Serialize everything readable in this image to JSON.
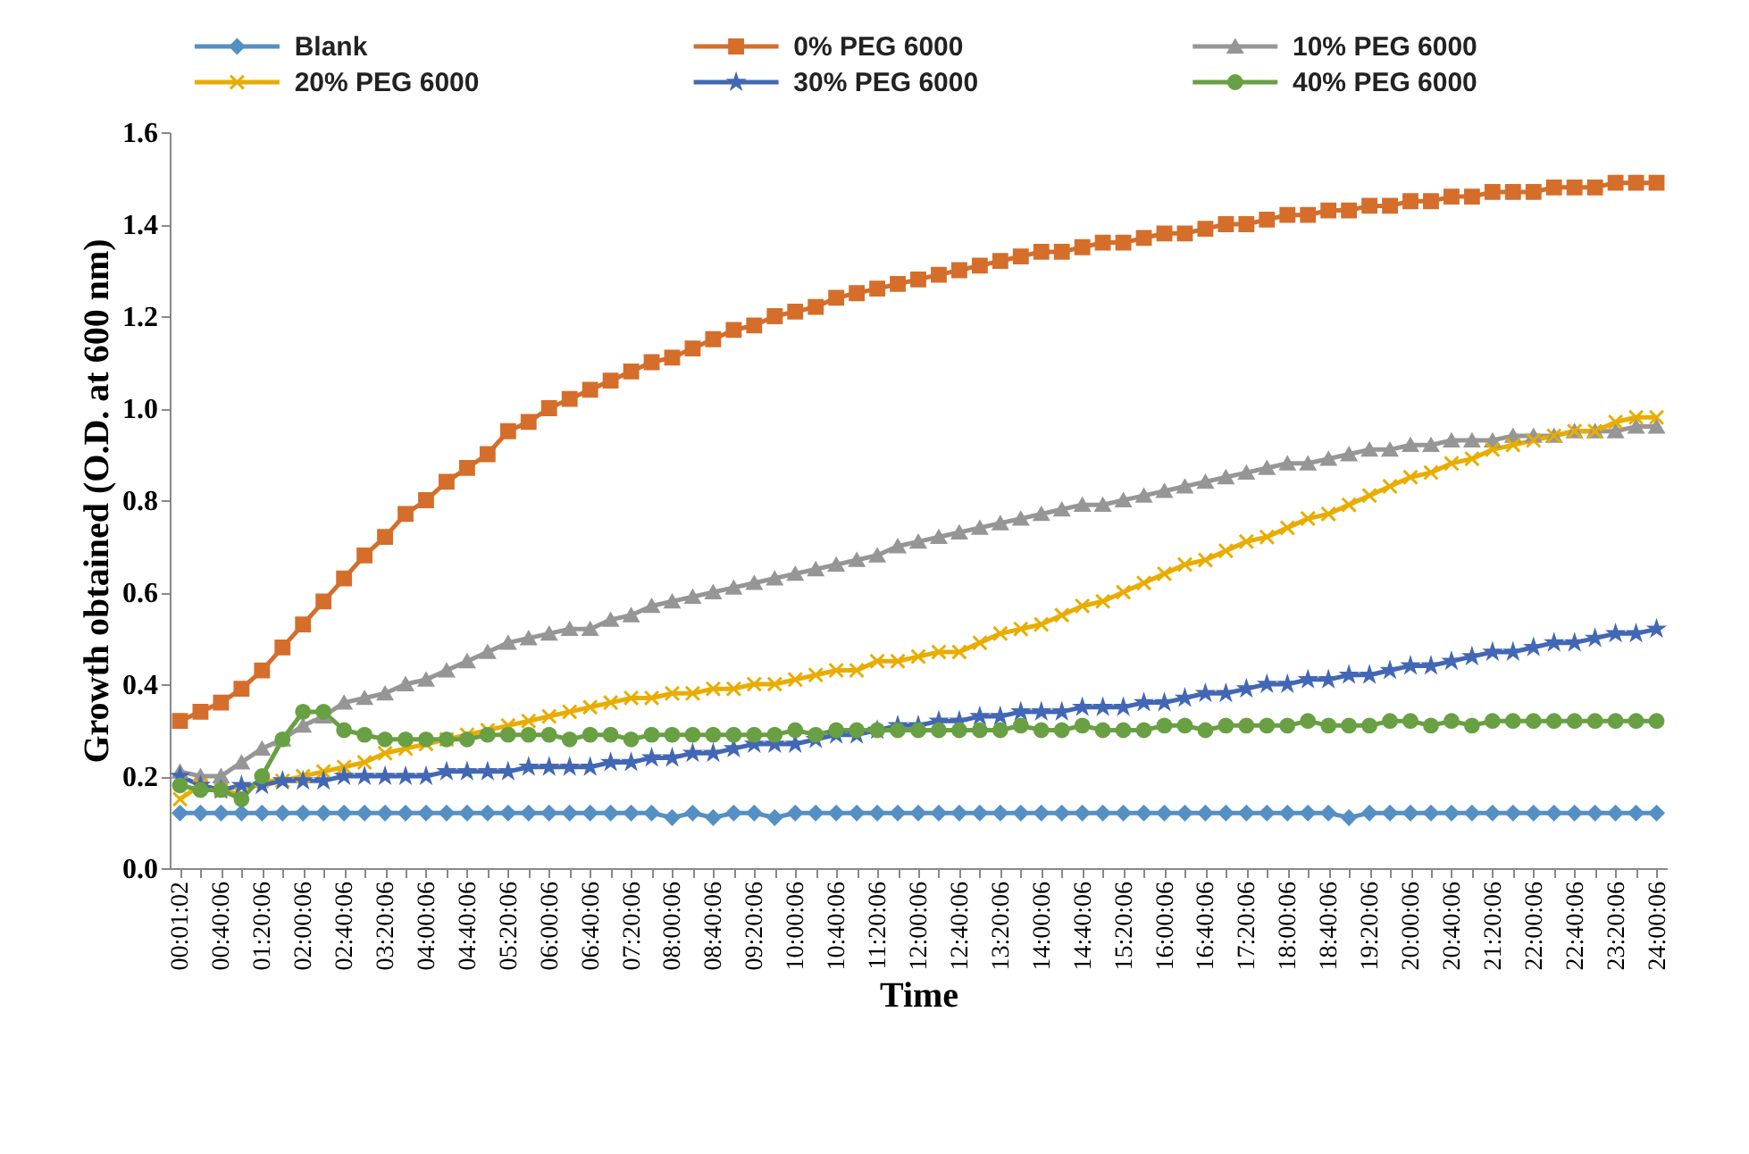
{
  "chart_data": {
    "type": "line",
    "xlabel": "Time",
    "ylabel": "Growth obtained (O.D.  at 600 nm)",
    "categories": [
      "00:01:02",
      null,
      "00:40:06",
      null,
      "01:20:06",
      null,
      "02:00:06",
      null,
      "02:40:06",
      null,
      "03:20:06",
      null,
      "04:00:06",
      null,
      "04:40:06",
      null,
      "05:20:06",
      null,
      "06:00:06",
      null,
      "06:40:06",
      null,
      "07:20:06",
      null,
      "08:00:06",
      null,
      "08:40:06",
      null,
      "09:20:06",
      null,
      "10:00:06",
      null,
      "10:40:06",
      null,
      "11:20:06",
      null,
      "12:00:06",
      null,
      "12:40:06",
      null,
      "13:20:06",
      null,
      "14:00:06",
      null,
      "14:40:06",
      null,
      "15:20:06",
      null,
      "16:00:06",
      null,
      "16:40:06",
      null,
      "17:20:06",
      null,
      "18:00:06",
      null,
      "18:40:06",
      null,
      "19:20:06",
      null,
      "20:00:06",
      null,
      "20:40:06",
      null,
      "21:20:06",
      null,
      "22:00:06",
      null,
      "22:40:06",
      null,
      "23:20:06",
      null,
      "24:00:06"
    ],
    "ylim": [
      0,
      1.6
    ],
    "yticks": [
      {
        "value": 0,
        "label": "0.0"
      },
      {
        "value": 0.2,
        "label": "0.2"
      },
      {
        "value": 0.4,
        "label": "0.4"
      },
      {
        "value": 0.6,
        "label": "0.6"
      },
      {
        "value": 0.8,
        "label": "0.8"
      },
      {
        "value": 1,
        "label": "1.0"
      },
      {
        "value": 1.2,
        "label": "1.2"
      },
      {
        "value": 1.4,
        "label": "1.4"
      },
      {
        "value": 1.6,
        "label": "1.6"
      }
    ],
    "grid": false,
    "legend": "top",
    "series": [
      {
        "name": "Blank",
        "color": "#5590c4",
        "marker": "diamond",
        "values": [
          0.12,
          0.12,
          0.12,
          0.12,
          0.12,
          0.12,
          0.12,
          0.12,
          0.12,
          0.12,
          0.12,
          0.12,
          0.12,
          0.12,
          0.12,
          0.12,
          0.12,
          0.12,
          0.12,
          0.12,
          0.12,
          0.12,
          0.12,
          0.12,
          0.11,
          0.12,
          0.11,
          0.12,
          0.12,
          0.11,
          0.12,
          0.12,
          0.12,
          0.12,
          0.12,
          0.12,
          0.12,
          0.12,
          0.12,
          0.12,
          0.12,
          0.12,
          0.12,
          0.12,
          0.12,
          0.12,
          0.12,
          0.12,
          0.12,
          0.12,
          0.12,
          0.12,
          0.12,
          0.12,
          0.12,
          0.12,
          0.12,
          0.11,
          0.12,
          0.12,
          0.12,
          0.12,
          0.12,
          0.12,
          0.12,
          0.12,
          0.12,
          0.12,
          0.12,
          0.12,
          0.12,
          0.12,
          0.12
        ]
      },
      {
        "name": "0% PEG 6000",
        "color": "#d56e2b",
        "marker": "square",
        "values": [
          0.32,
          0.34,
          0.36,
          0.39,
          0.43,
          0.48,
          0.53,
          0.58,
          0.63,
          0.68,
          0.72,
          0.77,
          0.8,
          0.84,
          0.87,
          0.9,
          0.95,
          0.97,
          1.0,
          1.02,
          1.04,
          1.06,
          1.08,
          1.1,
          1.11,
          1.13,
          1.15,
          1.17,
          1.18,
          1.2,
          1.21,
          1.22,
          1.24,
          1.25,
          1.26,
          1.27,
          1.28,
          1.29,
          1.3,
          1.31,
          1.32,
          1.33,
          1.34,
          1.34,
          1.35,
          1.36,
          1.36,
          1.37,
          1.38,
          1.38,
          1.39,
          1.4,
          1.4,
          1.41,
          1.42,
          1.42,
          1.43,
          1.43,
          1.44,
          1.44,
          1.45,
          1.45,
          1.46,
          1.46,
          1.47,
          1.47,
          1.47,
          1.48,
          1.48,
          1.48,
          1.49,
          1.49,
          1.49
        ]
      },
      {
        "name": "10% PEG 6000",
        "color": "#969696",
        "marker": "triangle",
        "values": [
          0.21,
          0.2,
          0.2,
          0.23,
          0.26,
          0.28,
          0.31,
          0.33,
          0.36,
          0.37,
          0.38,
          0.4,
          0.41,
          0.43,
          0.45,
          0.47,
          0.49,
          0.5,
          0.51,
          0.52,
          0.52,
          0.54,
          0.55,
          0.57,
          0.58,
          0.59,
          0.6,
          0.61,
          0.62,
          0.63,
          0.64,
          0.65,
          0.66,
          0.67,
          0.68,
          0.7,
          0.71,
          0.72,
          0.73,
          0.74,
          0.75,
          0.76,
          0.77,
          0.78,
          0.79,
          0.79,
          0.8,
          0.81,
          0.82,
          0.83,
          0.84,
          0.85,
          0.86,
          0.87,
          0.88,
          0.88,
          0.89,
          0.9,
          0.91,
          0.91,
          0.92,
          0.92,
          0.93,
          0.93,
          0.93,
          0.94,
          0.94,
          0.94,
          0.95,
          0.95,
          0.95,
          0.96,
          0.96
        ]
      },
      {
        "name": "20% PEG 6000",
        "color": "#e8ad00",
        "marker": "cross",
        "values": [
          0.15,
          0.18,
          0.17,
          0.16,
          0.19,
          0.19,
          0.2,
          0.21,
          0.22,
          0.23,
          0.25,
          0.26,
          0.27,
          0.28,
          0.29,
          0.3,
          0.31,
          0.32,
          0.33,
          0.34,
          0.35,
          0.36,
          0.37,
          0.37,
          0.38,
          0.38,
          0.39,
          0.39,
          0.4,
          0.4,
          0.41,
          0.42,
          0.43,
          0.43,
          0.45,
          0.45,
          0.46,
          0.47,
          0.47,
          0.49,
          0.51,
          0.52,
          0.53,
          0.55,
          0.57,
          0.58,
          0.6,
          0.62,
          0.64,
          0.66,
          0.67,
          0.69,
          0.71,
          0.72,
          0.74,
          0.76,
          0.77,
          0.79,
          0.81,
          0.83,
          0.85,
          0.86,
          0.88,
          0.89,
          0.91,
          0.92,
          0.93,
          0.94,
          0.95,
          0.95,
          0.97,
          0.98,
          0.98
        ]
      },
      {
        "name": "30% PEG 6000",
        "color": "#4267b5",
        "marker": "star",
        "values": [
          0.2,
          0.18,
          0.17,
          0.18,
          0.18,
          0.19,
          0.19,
          0.19,
          0.2,
          0.2,
          0.2,
          0.2,
          0.2,
          0.21,
          0.21,
          0.21,
          0.21,
          0.22,
          0.22,
          0.22,
          0.22,
          0.23,
          0.23,
          0.24,
          0.24,
          0.25,
          0.25,
          0.26,
          0.27,
          0.27,
          0.27,
          0.28,
          0.29,
          0.29,
          0.3,
          0.31,
          0.31,
          0.32,
          0.32,
          0.33,
          0.33,
          0.34,
          0.34,
          0.34,
          0.35,
          0.35,
          0.35,
          0.36,
          0.36,
          0.37,
          0.38,
          0.38,
          0.39,
          0.4,
          0.4,
          0.41,
          0.41,
          0.42,
          0.42,
          0.43,
          0.44,
          0.44,
          0.45,
          0.46,
          0.47,
          0.47,
          0.48,
          0.49,
          0.49,
          0.5,
          0.51,
          0.51,
          0.52
        ]
      },
      {
        "name": "40% PEG 6000",
        "color": "#68a043",
        "marker": "circle",
        "values": [
          0.18,
          0.17,
          0.17,
          0.15,
          0.2,
          0.28,
          0.34,
          0.34,
          0.3,
          0.29,
          0.28,
          0.28,
          0.28,
          0.28,
          0.28,
          0.29,
          0.29,
          0.29,
          0.29,
          0.28,
          0.29,
          0.29,
          0.28,
          0.29,
          0.29,
          0.29,
          0.29,
          0.29,
          0.29,
          0.29,
          0.3,
          0.29,
          0.3,
          0.3,
          0.3,
          0.3,
          0.3,
          0.3,
          0.3,
          0.3,
          0.3,
          0.31,
          0.3,
          0.3,
          0.31,
          0.3,
          0.3,
          0.3,
          0.31,
          0.31,
          0.3,
          0.31,
          0.31,
          0.31,
          0.31,
          0.32,
          0.31,
          0.31,
          0.31,
          0.32,
          0.32,
          0.31,
          0.32,
          0.31,
          0.32,
          0.32,
          0.32,
          0.32,
          0.32,
          0.32,
          0.32,
          0.32,
          0.32
        ]
      }
    ]
  }
}
